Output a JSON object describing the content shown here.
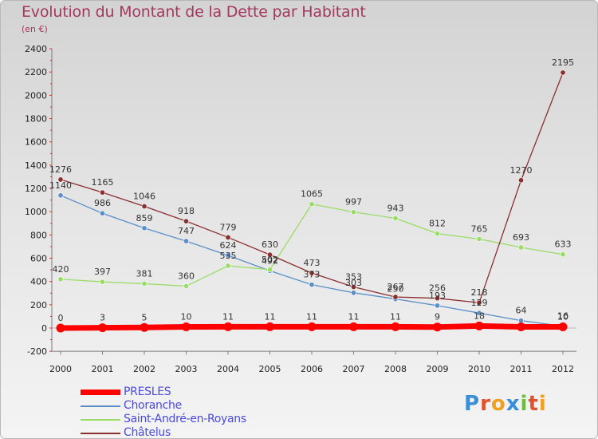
{
  "title": "Evolution du Montant de la Dette par Habitant",
  "subtitle": "(en €)",
  "logo": "Proxiti",
  "colors": {
    "title": "#a3385f",
    "background_top": "#d3d3d3",
    "background_bottom": "#f4f4f4"
  },
  "chart_data": {
    "type": "line",
    "title": "Evolution du Montant de la Dette par Habitant",
    "ylabel": "(en €)",
    "xlabel": "",
    "ylim": [
      -200,
      2400
    ],
    "yticks": [
      -200,
      0,
      200,
      400,
      600,
      800,
      1000,
      1200,
      1400,
      1600,
      1800,
      2000,
      2200,
      2400
    ],
    "x": [
      "2000",
      "2001",
      "2002",
      "2003",
      "2004",
      "2005",
      "2006",
      "2007",
      "2008",
      "2009",
      "2010",
      "2011",
      "2012"
    ],
    "legend_position": "bottom-left",
    "grid": false,
    "series": [
      {
        "name": "PRESLES",
        "color": "#ff0000",
        "values": [
          0,
          3,
          5,
          10,
          11,
          11,
          11,
          11,
          11,
          9,
          18,
          10,
          10
        ],
        "labels": [
          "0",
          "3",
          "5",
          "10",
          "11",
          "11",
          "11",
          "11",
          "11",
          "9",
          "18",
          "",
          "10"
        ]
      },
      {
        "name": "Choranche",
        "color": "#5a8fc8",
        "values": [
          1140,
          986,
          859,
          747,
          624,
          492,
          373,
          303,
          250,
          193,
          129,
          64,
          16
        ],
        "labels": [
          "1140",
          "986",
          "859",
          "747",
          "624",
          "492",
          "373",
          "303",
          "250",
          "193",
          "129",
          "64",
          "16"
        ]
      },
      {
        "name": "Saint-André-en-Royans",
        "color": "#99dd66",
        "values": [
          420,
          397,
          381,
          360,
          535,
          502,
          1065,
          997,
          943,
          812,
          765,
          693,
          633
        ],
        "labels": [
          "420",
          "397",
          "381",
          "360",
          "535",
          "502",
          "1065",
          "997",
          "943",
          "812",
          "765",
          "693",
          "633"
        ]
      },
      {
        "name": "Châtelus",
        "color": "#8b2f2f",
        "values": [
          1276,
          1165,
          1046,
          918,
          779,
          630,
          473,
          353,
          267,
          256,
          218,
          1270,
          2195
        ],
        "labels": [
          "1276",
          "1165",
          "1046",
          "918",
          "779",
          "630",
          "473",
          "353",
          "267",
          "256",
          "218",
          "1270",
          "2195"
        ]
      }
    ]
  }
}
